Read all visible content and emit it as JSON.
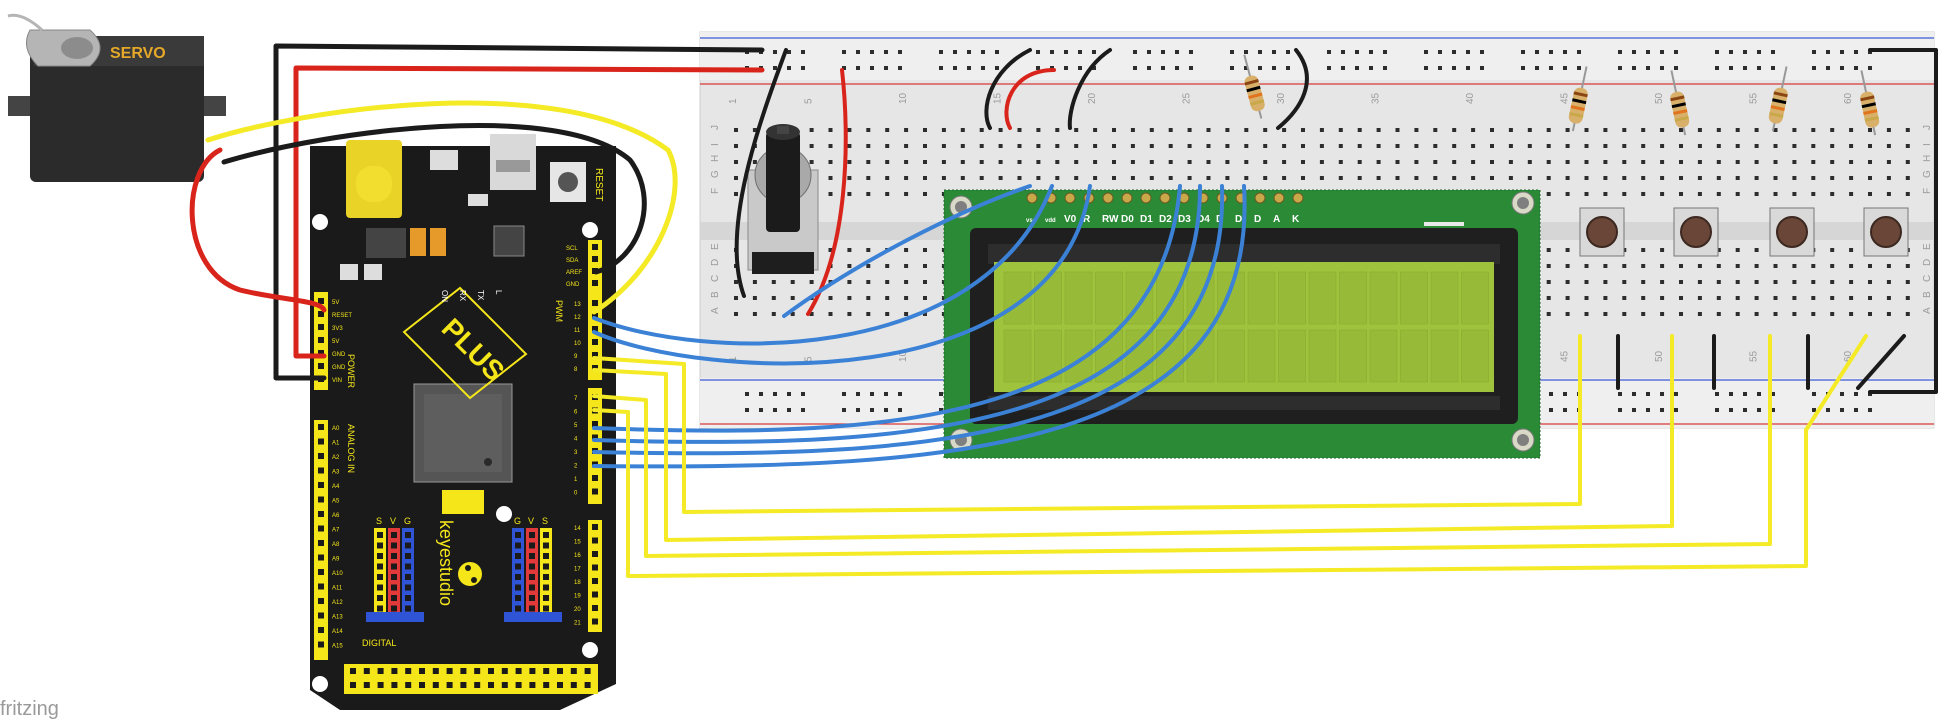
{
  "servo": {
    "label": "SERVO"
  },
  "board": {
    "brand": "keyestudio",
    "model": "PLUS",
    "reset_label": "RESET",
    "pwm_label": "PWM",
    "power_label": "POWER",
    "analog_label": "ANALOG IN",
    "digital_label": "DIGITAL",
    "led_labels": [
      "ON",
      "RX",
      "TX",
      "L"
    ],
    "power_pins": [
      "5V",
      "RESET",
      "3V3",
      "5V",
      "GND",
      "GND",
      "VIN"
    ],
    "top_right_pins": [
      "SCL",
      "SDA",
      "AREF",
      "GND"
    ],
    "digital_pins_upper": [
      "13",
      "12",
      "11",
      "10",
      "9",
      "8"
    ],
    "digital_pins_lower": [
      "7",
      "6",
      "5",
      "4",
      "3",
      "2",
      "1",
      "0"
    ],
    "analog_pins": [
      "A0",
      "A1",
      "A2",
      "A3",
      "A4",
      "A5",
      "A6",
      "A7",
      "A8",
      "A9",
      "A10",
      "A11",
      "A12",
      "A13",
      "A14",
      "A15"
    ],
    "right_lower_pins": [
      "14",
      "15",
      "16",
      "17",
      "18",
      "19",
      "20",
      "21"
    ],
    "header_letters": [
      "S",
      "V",
      "G"
    ]
  },
  "breadboard": {
    "column_numbers": [
      "1",
      "5",
      "10",
      "15",
      "20",
      "25",
      "30",
      "35",
      "40",
      "45",
      "50",
      "55",
      "60"
    ],
    "row_letters_top": [
      "J",
      "I",
      "H",
      "G",
      "F"
    ],
    "row_letters_bottom": [
      "E",
      "D",
      "C",
      "B",
      "A"
    ]
  },
  "lcd": {
    "pin_labels": [
      "VSS",
      "VDD",
      "V0",
      "RS",
      "RW",
      "E",
      "D0",
      "D1",
      "D2",
      "D3",
      "D4",
      "D5",
      "D6",
      "D7",
      "A",
      "K"
    ],
    "pin_labels_visible": [
      "vss",
      "vdd",
      "V0",
      "R",
      "RW",
      "D0",
      "D1",
      "D2",
      "D3",
      "D4",
      "D",
      "D",
      "D",
      "A",
      "K"
    ]
  },
  "footer": {
    "text": "fritzing"
  },
  "colors": {
    "board_black": "#1a1a1a",
    "header_yellow": "#f5e61a",
    "breadboard": "#e6e6e6",
    "lcd_pcb": "#2a8a36",
    "lcd_screen": "#9fc33d",
    "wire_blue": "#3b82d6",
    "wire_yellow": "#f4ea26",
    "wire_red": "#d9241c",
    "wire_black": "#1b1b1b",
    "hole_green": "#39b54a"
  }
}
